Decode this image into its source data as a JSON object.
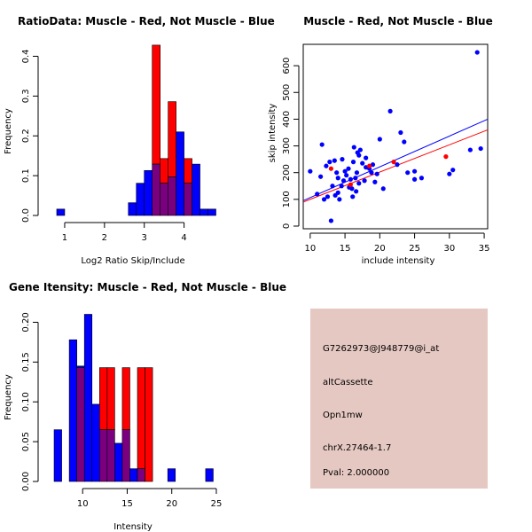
{
  "colors": {
    "red": "#ff0000",
    "blue": "#0000ff",
    "overlap": "#7a0080",
    "info_bg": "#e6c8c2",
    "pval": "#b40000"
  },
  "info": {
    "probe_id": "G7262973@J948779@i_at",
    "event_type": "altCassette",
    "gene": "Opn1mw",
    "location": "chrX.27464-1.7",
    "pval": "Pval: 2.000000"
  },
  "chart_data": [
    {
      "id": "ratio",
      "type": "bar",
      "title": "RatioData: Muscle - Red, Not Muscle - Blue",
      "xlabel": "Log2 Ratio Skip/Include",
      "ylabel": "Frequency",
      "xlim": [
        0.6,
        4.9
      ],
      "ylim": [
        0,
        0.43
      ],
      "xticks": [
        "1",
        "2",
        "3",
        "4"
      ],
      "yticks": [
        "0.0",
        "0.1",
        "0.2",
        "0.3",
        "0.4"
      ],
      "bin_width": 0.2,
      "series": [
        {
          "name": "Not Muscle",
          "color": "blue",
          "bins": [
            [
              0.8,
              0.016
            ],
            [
              2.6,
              0.032
            ],
            [
              2.8,
              0.081
            ],
            [
              3.0,
              0.113
            ],
            [
              3.2,
              0.129
            ],
            [
              3.4,
              0.081
            ],
            [
              3.6,
              0.097
            ],
            [
              3.8,
              0.21
            ],
            [
              4.0,
              0.081
            ],
            [
              4.2,
              0.129
            ],
            [
              4.4,
              0.016
            ],
            [
              4.6,
              0.016
            ]
          ]
        },
        {
          "name": "Muscle",
          "color": "red",
          "bins": [
            [
              3.2,
              0.428
            ],
            [
              3.4,
              0.143
            ],
            [
              3.6,
              0.286
            ],
            [
              4.0,
              0.143
            ]
          ]
        }
      ]
    },
    {
      "id": "scatter",
      "type": "scatter",
      "title": "Muscle - Red, Not Muscle - Blue",
      "xlabel": "include intensity",
      "ylabel": "skip intensity",
      "xlim": [
        9,
        35.5
      ],
      "ylim": [
        -10,
        680
      ],
      "xticks": [
        "10",
        "15",
        "20",
        "25",
        "30",
        "35"
      ],
      "yticks": [
        "0",
        "100",
        "200",
        "300",
        "400",
        "500",
        "600"
      ],
      "series": [
        {
          "name": "Not Muscle",
          "color": "blue",
          "points": [
            [
              10,
              205
            ],
            [
              11,
              120
            ],
            [
              11.5,
              185
            ],
            [
              11.7,
              305
            ],
            [
              12,
              100
            ],
            [
              12.3,
              225
            ],
            [
              12.5,
              110
            ],
            [
              12.8,
              240
            ],
            [
              13,
              20
            ],
            [
              13.2,
              150
            ],
            [
              13.5,
              245
            ],
            [
              13.6,
              115
            ],
            [
              13.8,
              200
            ],
            [
              14,
              125
            ],
            [
              14,
              180
            ],
            [
              14.2,
              100
            ],
            [
              14.5,
              150
            ],
            [
              14.6,
              250
            ],
            [
              14.8,
              170
            ],
            [
              15,
              205
            ],
            [
              15.2,
              190
            ],
            [
              15.5,
              215
            ],
            [
              15.6,
              145
            ],
            [
              15.8,
              175
            ],
            [
              16,
              140
            ],
            [
              16.1,
              110
            ],
            [
              16.2,
              240
            ],
            [
              16.3,
              295
            ],
            [
              16.5,
              180
            ],
            [
              16.6,
              130
            ],
            [
              16.7,
              200
            ],
            [
              16.8,
              275
            ],
            [
              17,
              265
            ],
            [
              17,
              160
            ],
            [
              17.2,
              285
            ],
            [
              17.5,
              235
            ],
            [
              17.8,
              170
            ],
            [
              18,
              220
            ],
            [
              18,
              255
            ],
            [
              18.5,
              215
            ],
            [
              18.8,
              200
            ],
            [
              19,
              230
            ],
            [
              19.3,
              165
            ],
            [
              19.6,
              195
            ],
            [
              20,
              325
            ],
            [
              20.5,
              140
            ],
            [
              21.5,
              430
            ],
            [
              22.5,
              230
            ],
            [
              23,
              350
            ],
            [
              23.5,
              315
            ],
            [
              24,
              200
            ],
            [
              25,
              175
            ],
            [
              25,
              205
            ],
            [
              26,
              180
            ],
            [
              30,
              195
            ],
            [
              30.5,
              210
            ],
            [
              33,
              285
            ],
            [
              34,
              650
            ],
            [
              34.5,
              290
            ]
          ]
        },
        {
          "name": "Muscle",
          "color": "red",
          "points": [
            [
              13,
              215
            ],
            [
              15.8,
              155
            ],
            [
              18.5,
              225
            ],
            [
              22,
              240
            ],
            [
              29.5,
              260
            ]
          ]
        }
      ],
      "fit_lines": [
        {
          "color": "blue",
          "from": [
            9,
            95
          ],
          "to": [
            35.5,
            400
          ]
        },
        {
          "color": "red",
          "from": [
            9,
            90
          ],
          "to": [
            35.5,
            360
          ]
        }
      ]
    },
    {
      "id": "intensity",
      "type": "bar",
      "title": "Gene Itensity: Muscle - Red, Not Muscle - Blue",
      "xlabel": "Intensity",
      "ylabel": "Frequency",
      "xlim": [
        6.2,
        25.4
      ],
      "ylim": [
        0,
        0.215
      ],
      "xticks": [
        "10",
        "15",
        "20",
        "25"
      ],
      "yticks": [
        "0.00",
        "0.05",
        "0.10",
        "0.15",
        "0.20"
      ],
      "bin_width": 0.85,
      "series": [
        {
          "name": "Not Muscle",
          "color": "blue",
          "bins": [
            [
              6.8,
              0.065
            ],
            [
              8.5,
              0.178
            ],
            [
              9.35,
              0.145
            ],
            [
              10.2,
              0.21
            ],
            [
              11.05,
              0.097
            ],
            [
              11.9,
              0.065
            ],
            [
              12.75,
              0.065
            ],
            [
              13.6,
              0.048
            ],
            [
              14.45,
              0.065
            ],
            [
              15.3,
              0.016
            ],
            [
              16.15,
              0.016
            ],
            [
              19.55,
              0.016
            ],
            [
              23.8,
              0.016
            ]
          ]
        },
        {
          "name": "Muscle",
          "color": "red",
          "bins": [
            [
              9.35,
              0.143
            ],
            [
              11.9,
              0.143
            ],
            [
              12.75,
              0.143
            ],
            [
              14.45,
              0.143
            ],
            [
              16.15,
              0.143
            ],
            [
              17.0,
              0.143
            ]
          ]
        }
      ]
    }
  ]
}
